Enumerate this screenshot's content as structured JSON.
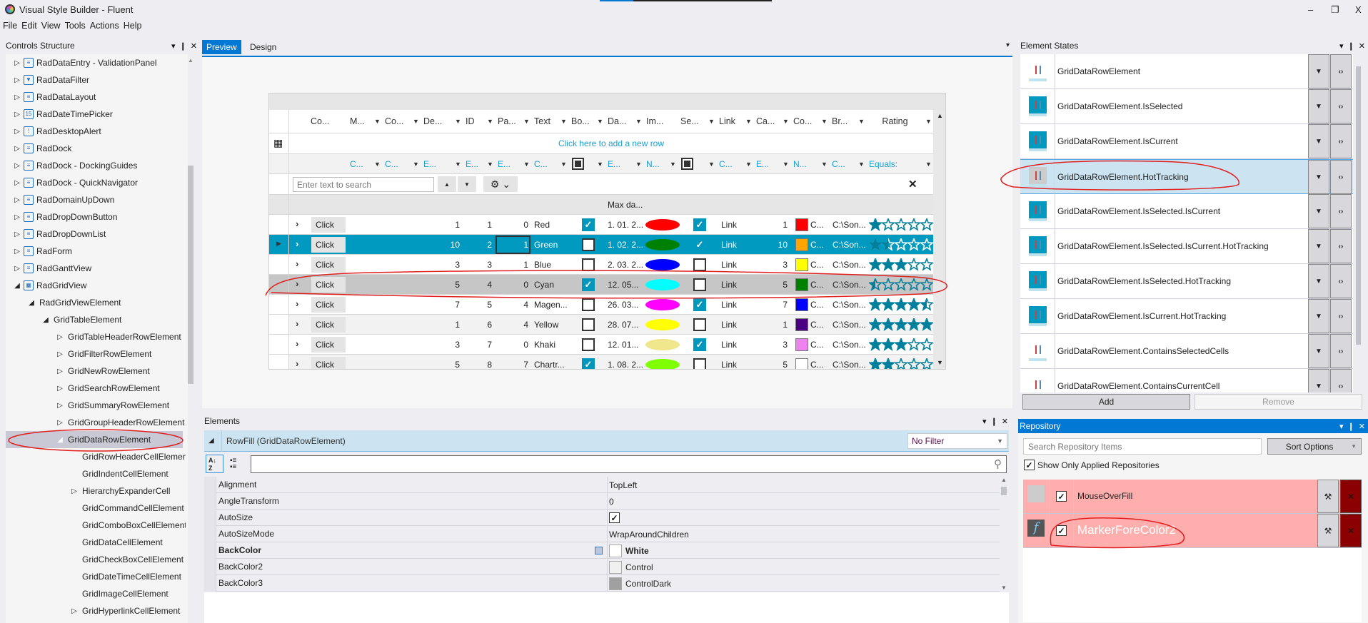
{
  "window": {
    "title": "Visual Style Builder - Fluent",
    "menu": [
      "File",
      "Edit",
      "View",
      "Tools",
      "Actions",
      "Help"
    ],
    "controls": {
      "minimize": "–",
      "restore": "❐",
      "close": "X"
    }
  },
  "panel_controls": {
    "dropdown": "▾",
    "pin": "❙",
    "close": "✕"
  },
  "controls_structure": {
    "title": "Controls Structure",
    "items": [
      {
        "label": "RadDataEntry - ValidationPanel",
        "level": 0,
        "expander": "collapsed",
        "icon": "form-icon"
      },
      {
        "label": "RadDataFilter",
        "level": 0,
        "expander": "collapsed",
        "icon": "filter-icon"
      },
      {
        "label": "RadDataLayout",
        "level": 0,
        "expander": "collapsed",
        "icon": "form-icon"
      },
      {
        "label": "RadDateTimePicker",
        "level": 0,
        "expander": "collapsed",
        "icon": "calendar-icon"
      },
      {
        "label": "RadDesktopAlert",
        "level": 0,
        "expander": "collapsed",
        "icon": "alert-icon"
      },
      {
        "label": "RadDock",
        "level": 0,
        "expander": "collapsed",
        "icon": "dock-icon"
      },
      {
        "label": "RadDock - DockingGuides",
        "level": 0,
        "expander": "collapsed",
        "icon": "dock-icon"
      },
      {
        "label": "RadDock - QuickNavigator",
        "level": 0,
        "expander": "collapsed",
        "icon": "dock-icon"
      },
      {
        "label": "RadDomainUpDown",
        "level": 0,
        "expander": "collapsed",
        "icon": "updown-icon"
      },
      {
        "label": "RadDropDownButton",
        "level": 0,
        "expander": "collapsed",
        "icon": "dropdown-icon"
      },
      {
        "label": "RadDropDownList",
        "level": 0,
        "expander": "collapsed",
        "icon": "dropdown-icon"
      },
      {
        "label": "RadForm",
        "level": 0,
        "expander": "collapsed",
        "icon": "form-icon"
      },
      {
        "label": "RadGanttView",
        "level": 0,
        "expander": "collapsed",
        "icon": "gantt-icon"
      },
      {
        "label": "RadGridView",
        "level": 0,
        "expander": "expanded",
        "icon": "grid-icon"
      },
      {
        "label": "RadGridViewElement",
        "level": 1,
        "expander": "expanded"
      },
      {
        "label": "GridTableElement",
        "level": 2,
        "expander": "expanded"
      },
      {
        "label": "GridTableHeaderRowElement",
        "level": 3,
        "expander": "collapsed"
      },
      {
        "label": "GridFilterRowElement",
        "level": 3,
        "expander": "collapsed"
      },
      {
        "label": "GridNewRowElement",
        "level": 3,
        "expander": "collapsed"
      },
      {
        "label": "GridSearchRowElement",
        "level": 3,
        "expander": "collapsed"
      },
      {
        "label": "GridSummaryRowElement",
        "level": 3,
        "expander": "collapsed"
      },
      {
        "label": "GridGroupHeaderRowElement",
        "level": 3,
        "expander": "collapsed"
      },
      {
        "label": "GridDataRowElement",
        "level": 3,
        "expander": "expanded",
        "selected": true
      },
      {
        "label": "GridRowHeaderCellElement",
        "level": 4,
        "expander": "none"
      },
      {
        "label": "GridIndentCellElement",
        "level": 4,
        "expander": "none"
      },
      {
        "label": "HierarchyExpanderCell",
        "level": 4,
        "expander": "collapsed"
      },
      {
        "label": "GridCommandCellElement",
        "level": 4,
        "expander": "none"
      },
      {
        "label": "GridComboBoxCellElement",
        "level": 4,
        "expander": "none"
      },
      {
        "label": "GridDataCellElement",
        "level": 4,
        "expander": "none"
      },
      {
        "label": "GridCheckBoxCellElement",
        "level": 4,
        "expander": "none"
      },
      {
        "label": "GridDateTimeCellElement",
        "level": 4,
        "expander": "none"
      },
      {
        "label": "GridImageCellElement",
        "level": 4,
        "expander": "none"
      },
      {
        "label": "GridHyperlinkCellElement",
        "level": 4,
        "expander": "collapsed"
      }
    ]
  },
  "preview": {
    "tabs": [
      {
        "label": "Preview",
        "active": true
      },
      {
        "label": "Design",
        "active": false
      }
    ],
    "grid": {
      "columns": [
        {
          "header": "Co...",
          "header_filter": false,
          "filter": "",
          "filter_arrow": false
        },
        {
          "header": "M...",
          "header_filter": true,
          "filter": "C...",
          "filter_arrow": true
        },
        {
          "header": "Co...",
          "header_filter": true,
          "filter": "C...",
          "filter_arrow": true
        },
        {
          "header": "De...",
          "header_filter": true,
          "filter": "E...",
          "filter_arrow": true
        },
        {
          "header": "ID",
          "header_filter": true,
          "filter": "E...",
          "filter_arrow": true
        },
        {
          "header": "Pa...",
          "header_filter": true,
          "filter": "E...",
          "filter_arrow": true
        },
        {
          "header": "Text",
          "header_filter": true,
          "filter": "C...",
          "filter_arrow": true
        },
        {
          "header": "Bo...",
          "header_filter": true,
          "filter_checkbox": true,
          "filter_arrow": true
        },
        {
          "header": "Da...",
          "header_filter": true,
          "filter": "E...",
          "filter_arrow": true
        },
        {
          "header": "Im...",
          "header_filter": false,
          "filter": "N...",
          "filter_arrow": true
        },
        {
          "header": "Se...",
          "header_filter": true,
          "filter_checkbox": true,
          "filter_arrow": true
        },
        {
          "header": "Link",
          "header_filter": true,
          "filter": "C...",
          "filter_arrow": true
        },
        {
          "header": "Ca...",
          "header_filter": true,
          "filter": "E...",
          "filter_arrow": true
        },
        {
          "header": "Co...",
          "header_filter": true,
          "filter": "N...",
          "filter_arrow": true
        },
        {
          "header": "Br...",
          "header_filter": true,
          "filter": "C...",
          "filter_arrow": true
        },
        {
          "header": "Rating",
          "header_filter": true,
          "filter": "Equals:",
          "filter_arrow": true
        }
      ],
      "new_row_text": "Click here to add a new row",
      "search_placeholder": "Enter text to search",
      "summary_text": "Max da...",
      "rows": [
        {
          "button": "Click",
          "de": "1",
          "id": "1",
          "pa": "0",
          "text": "Red",
          "bool": true,
          "date": "1. 01. 2...",
          "image_color": "#ff0000",
          "se": true,
          "link": "Link",
          "ca": "1",
          "swatch": "#ff0000",
          "co": "C...",
          "br": "C:\\Son...",
          "rating": 1
        },
        {
          "button": "Click",
          "de": "10",
          "id": "2",
          "pa": "1",
          "text": "Green",
          "bool": false,
          "date": "1. 02. 2...",
          "image_color": "#008000",
          "se": true,
          "link": "Link",
          "ca": "10",
          "swatch": "#ffa500",
          "co": "C...",
          "br": "C:\\Son...",
          "rating": 1.5,
          "selected": true
        },
        {
          "button": "Click",
          "de": "3",
          "id": "3",
          "pa": "1",
          "text": "Blue",
          "bool": false,
          "date": "2. 03. 2...",
          "image_color": "#0000ff",
          "se": false,
          "link": "Link",
          "ca": "3",
          "swatch": "#ffff00",
          "co": "C...",
          "br": "C:\\Son...",
          "rating": 3
        },
        {
          "button": "Click",
          "de": "5",
          "id": "4",
          "pa": "0",
          "text": "Cyan",
          "bool": true,
          "date": "12. 05...",
          "image_color": "#00ffff",
          "se": false,
          "link": "Link",
          "ca": "5",
          "swatch": "#008000",
          "co": "C...",
          "br": "C:\\Son...",
          "rating": 0.5,
          "hot": true
        },
        {
          "button": "Click",
          "de": "7",
          "id": "5",
          "pa": "4",
          "text": "Magen...",
          "bool": false,
          "date": "26. 03...",
          "image_color": "#ff00ff",
          "se": true,
          "link": "Link",
          "ca": "7",
          "swatch": "#0000ff",
          "co": "C...",
          "br": "C:\\Son...",
          "rating": 4.5
        },
        {
          "button": "Click",
          "de": "1",
          "id": "6",
          "pa": "4",
          "text": "Yellow",
          "bool": false,
          "date": "28. 07...",
          "image_color": "#ffff00",
          "se": false,
          "link": "Link",
          "ca": "1",
          "swatch": "#4b0082",
          "co": "C...",
          "br": "C:\\Son...",
          "rating": 5
        },
        {
          "button": "Click",
          "de": "3",
          "id": "7",
          "pa": "0",
          "text": "Khaki",
          "bool": false,
          "date": "12. 01...",
          "image_color": "#f0e68c",
          "se": true,
          "link": "Link",
          "ca": "3",
          "swatch": "#ee82ee",
          "co": "C...",
          "br": "C:\\Son...",
          "rating": 3
        },
        {
          "button": "Click",
          "de": "5",
          "id": "8",
          "pa": "7",
          "text": "Chartr...",
          "bool": true,
          "date": "1. 08. 2...",
          "image_color": "#7fff00",
          "se": false,
          "link": "Link",
          "ca": "5",
          "swatch": "#ffffff",
          "co": "C...",
          "br": "C:\\Son...",
          "rating": 2
        }
      ],
      "colors": {
        "selected_row": "#0099bf",
        "hot_row": "#c6c6c6",
        "accent": "#1a9fcf",
        "star": "#00809c"
      }
    }
  },
  "elements": {
    "title": "Elements",
    "group": "RowFill (GridDataRowElement)",
    "filter": "No Filter",
    "properties": [
      {
        "name": "Alignment",
        "value": "TopLeft"
      },
      {
        "name": "AngleTransform",
        "value": "0"
      },
      {
        "name": "AutoSize",
        "checkbox": true
      },
      {
        "name": "AutoSizeMode",
        "value": "WrapAroundChildren"
      },
      {
        "name": "BackColor",
        "value": "White",
        "swatch": "#ffffff",
        "bold": true
      },
      {
        "name": "BackColor2",
        "value": "Control",
        "swatch": "#f0f0f0"
      },
      {
        "name": "BackColor3",
        "value": "ControlDark",
        "swatch": "#a0a0a0"
      }
    ]
  },
  "element_states": {
    "title": "Element States",
    "items": [
      {
        "label": "GridDataRowElement",
        "preview": "white"
      },
      {
        "label": "GridDataRowElement.IsSelected",
        "preview": "teal"
      },
      {
        "label": "GridDataRowElement.IsCurrent",
        "preview": "teal"
      },
      {
        "label": "GridDataRowElement.HotTracking",
        "preview": "gray",
        "selected": true
      },
      {
        "label": "GridDataRowElement.IsSelected.IsCurrent",
        "preview": "teal"
      },
      {
        "label": "GridDataRowElement.IsSelected.IsCurrent.HotTracking",
        "preview": "teal"
      },
      {
        "label": "GridDataRowElement.IsSelected.HotTracking",
        "preview": "teal"
      },
      {
        "label": "GridDataRowElement.IsCurrent.HotTracking",
        "preview": "teal"
      },
      {
        "label": "GridDataRowElement.ContainsSelectedCells",
        "preview": "white"
      },
      {
        "label": "GridDataRowElement.ContainsCurrentCell",
        "preview": "white"
      }
    ],
    "add_label": "Add",
    "remove_label": "Remove"
  },
  "repository": {
    "title": "Repository",
    "search_placeholder": "Search Repository Items",
    "sort_label": "Sort Options",
    "show_applied_label": "Show Only Applied Repositories",
    "show_applied_checked": true,
    "items": [
      {
        "name": "MouseOverFill",
        "checked": true,
        "icon": "fill-swatch-icon"
      },
      {
        "name": "MarkerForeColor2",
        "checked": true,
        "icon": "function-icon"
      }
    ],
    "colors": {
      "item_bg": "#ffaeae",
      "delete_bg": "#8b0000"
    }
  }
}
